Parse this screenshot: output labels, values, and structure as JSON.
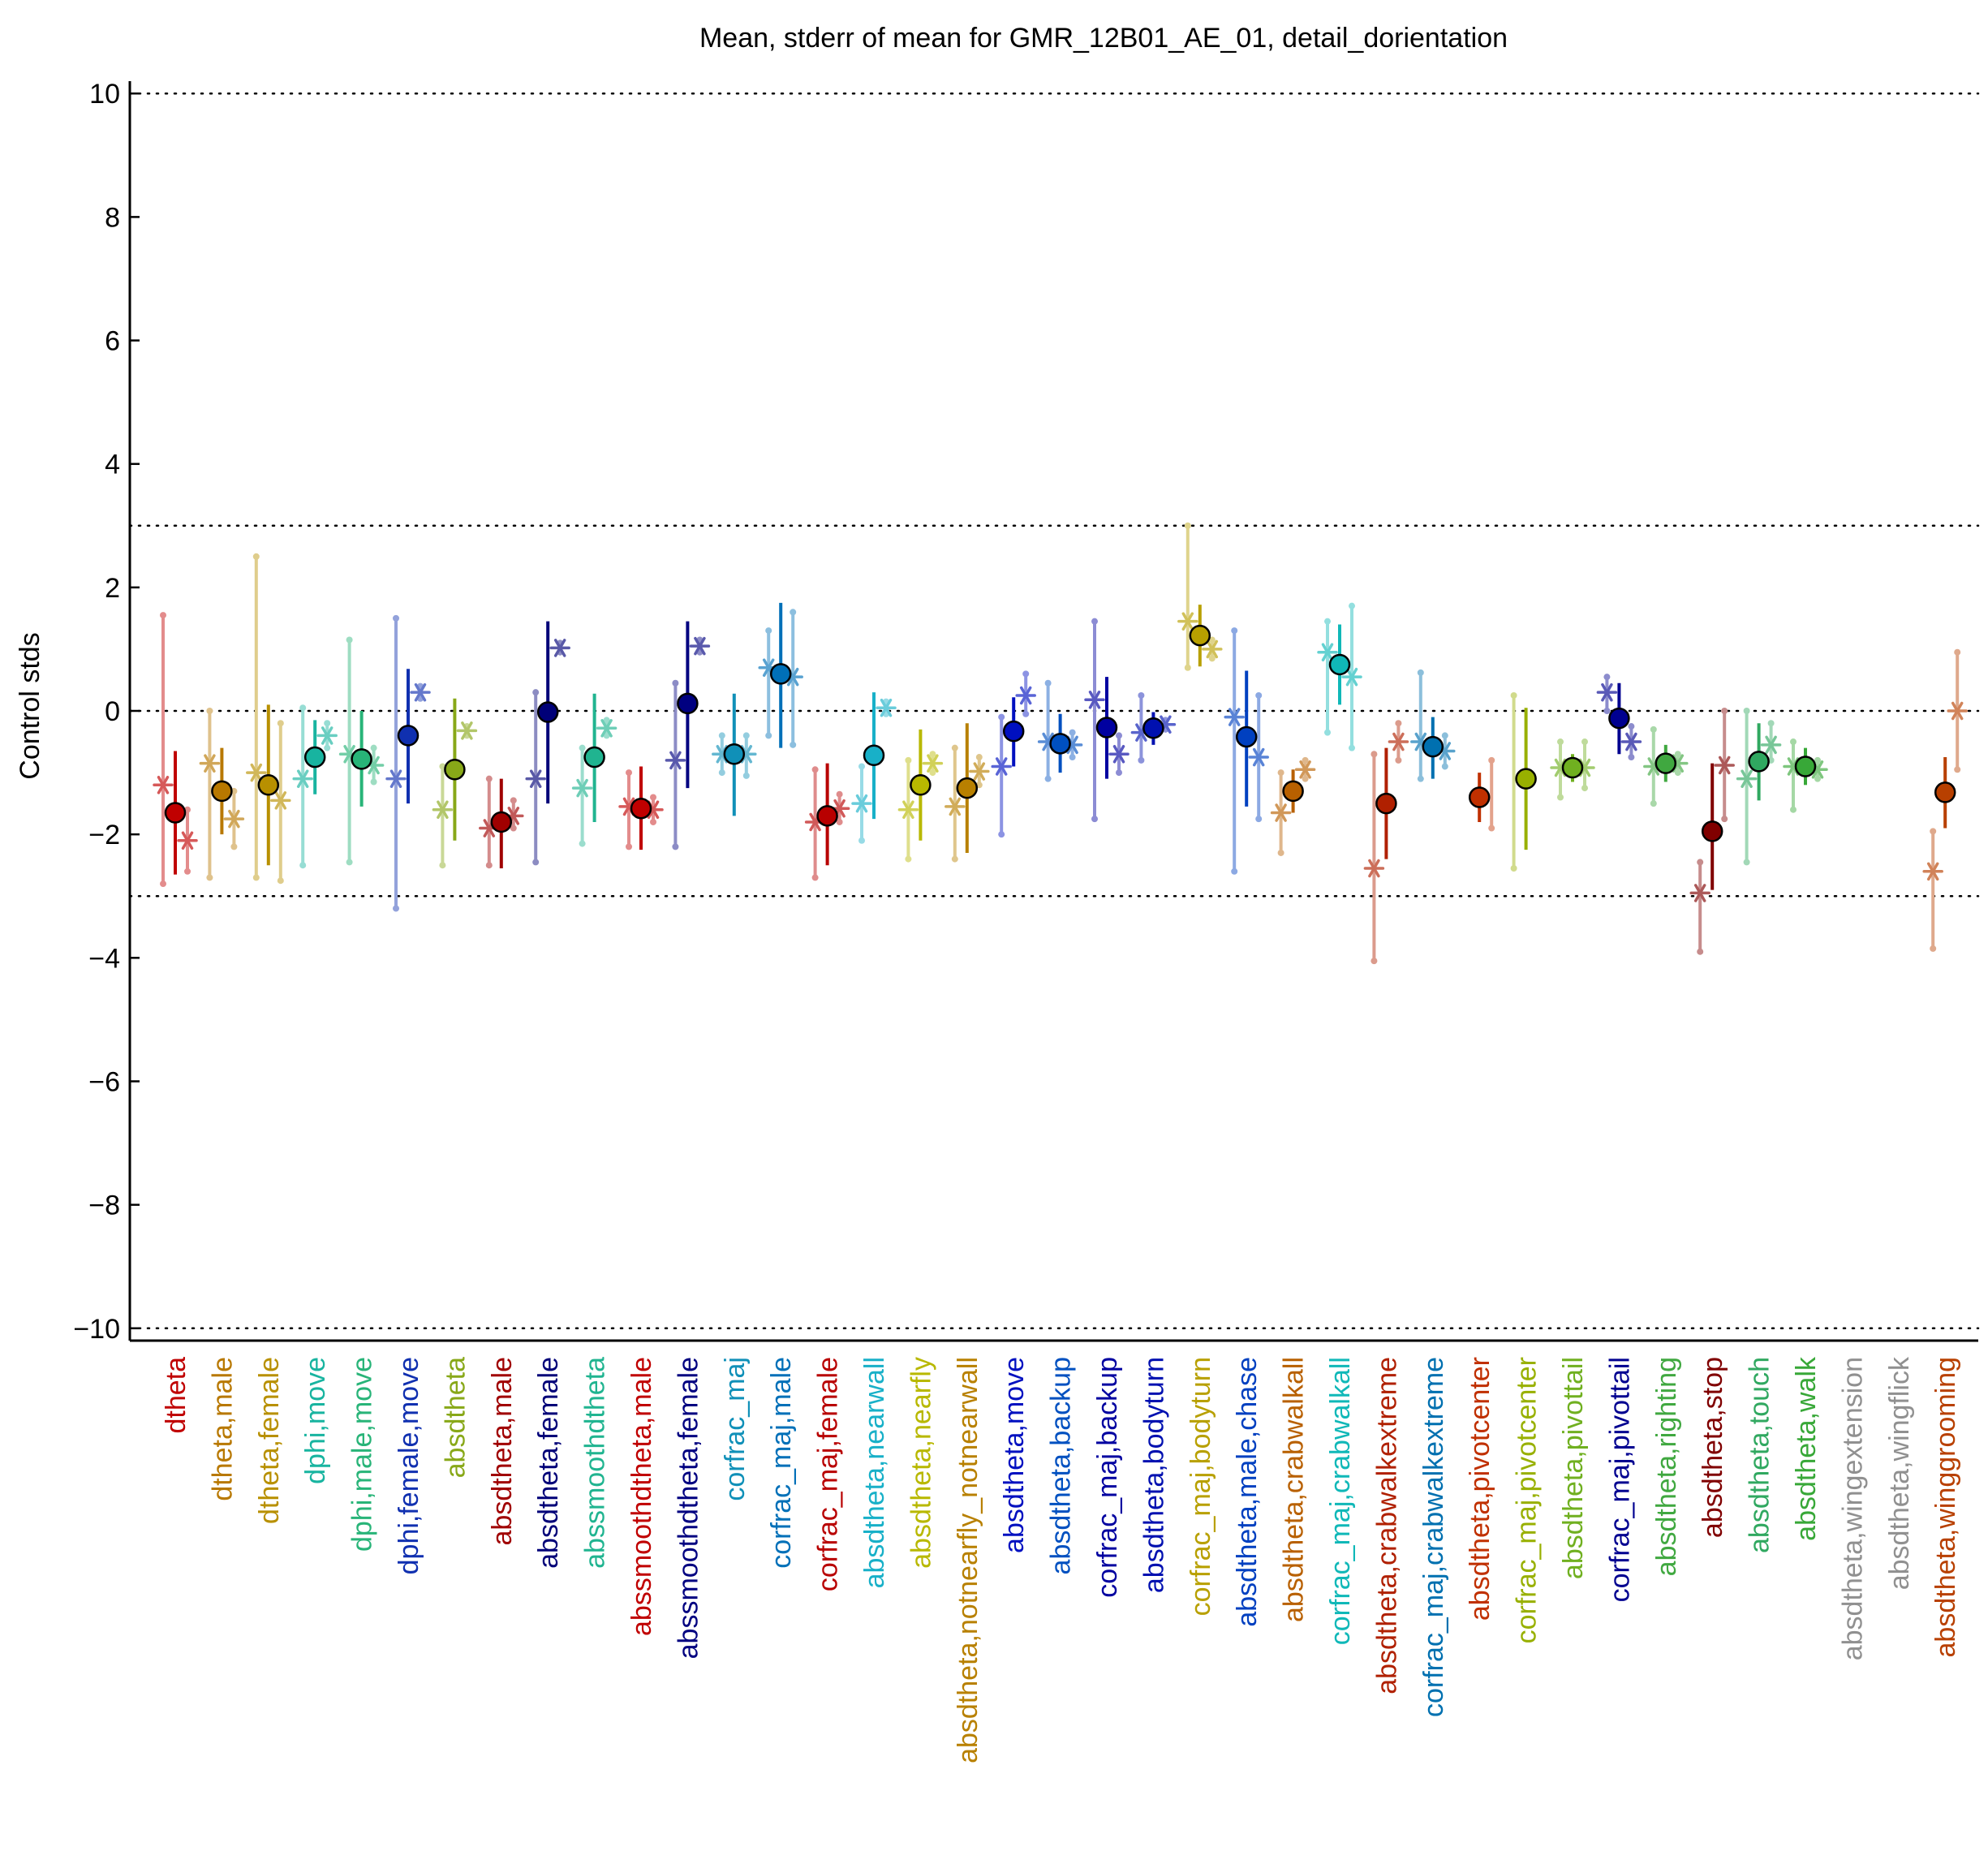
{
  "chart_data": {
    "type": "scatter",
    "title": "Mean, stderr of mean for GMR_12B01_AE_01, detail_dorientation",
    "ylabel": "Control stds",
    "xlabel": "",
    "ylim": [
      -10.2,
      10.2
    ],
    "yticks": [
      -10,
      -8,
      -6,
      -4,
      -2,
      0,
      2,
      4,
      6,
      8,
      10
    ],
    "ytick_labels": [
      "−10",
      "−8",
      "−6",
      "−4",
      "−2",
      "0",
      "2",
      "4",
      "6",
      "8",
      "10"
    ],
    "reference_lines": [
      10,
      3,
      0,
      -3,
      -10
    ],
    "grid": false,
    "legend": "none",
    "categories": [
      {
        "label": "dtheta",
        "color": "#c00000",
        "mean": -1.65,
        "lo": -2.65,
        "hi": -0.65,
        "m": -1.2,
        "m_lo": -2.8,
        "m_hi": 1.55,
        "f": -2.1,
        "f_lo": -2.6,
        "f_hi": -1.6
      },
      {
        "label": "dtheta,male",
        "color": "#b87800",
        "mean": -1.3,
        "lo": -2.0,
        "hi": -0.6,
        "m": -0.85,
        "m_lo": -2.7,
        "m_hi": 0.0,
        "f": -1.75,
        "f_lo": -2.2,
        "f_hi": -1.3
      },
      {
        "label": "dtheta,female",
        "color": "#b89000",
        "mean": -1.2,
        "lo": -2.5,
        "hi": 0.1,
        "m": -1.0,
        "m_lo": -2.7,
        "m_hi": 2.5,
        "f": -1.45,
        "f_lo": -2.75,
        "f_hi": -0.2
      },
      {
        "label": "dphi,move",
        "color": "#18b4a0",
        "mean": -0.75,
        "lo": -1.35,
        "hi": -0.15,
        "m": -1.1,
        "m_lo": -2.5,
        "m_hi": 0.05,
        "f": -0.4,
        "f_lo": -0.6,
        "f_hi": -0.2
      },
      {
        "label": "dphi,male,move",
        "color": "#28b478",
        "mean": -0.78,
        "lo": -1.55,
        "hi": 0.0,
        "m": -0.7,
        "m_lo": -2.45,
        "m_hi": 1.15,
        "f": -0.88,
        "f_lo": -1.15,
        "f_hi": -0.6
      },
      {
        "label": "dphi,female,move",
        "color": "#1030b0",
        "mean": -0.4,
        "lo": -1.5,
        "hi": 0.68,
        "m": -1.1,
        "m_lo": -3.2,
        "m_hi": 1.5,
        "f": 0.3,
        "f_lo": 0.2,
        "f_hi": 0.4
      },
      {
        "label": "absdtheta",
        "color": "#88a818",
        "mean": -0.95,
        "lo": -2.1,
        "hi": 0.2,
        "m": -1.6,
        "m_lo": -2.5,
        "m_hi": -0.9,
        "f": -0.32,
        "f_lo": -0.4,
        "f_hi": -0.25
      },
      {
        "label": "absdtheta,male",
        "color": "#a00000",
        "mean": -1.8,
        "lo": -2.55,
        "hi": -1.1,
        "m": -1.9,
        "m_lo": -2.5,
        "m_hi": -1.1,
        "f": -1.7,
        "f_lo": -1.9,
        "f_hi": -1.45
      },
      {
        "label": "absdtheta,female",
        "color": "#000078",
        "mean": -0.02,
        "lo": -1.5,
        "hi": 1.45,
        "m": -1.1,
        "m_lo": -2.45,
        "m_hi": 0.3,
        "f": 1.02,
        "f_lo": 0.95,
        "f_hi": 1.1
      },
      {
        "label": "abssmoothdtheta",
        "color": "#20b490",
        "mean": -0.75,
        "lo": -1.8,
        "hi": 0.28,
        "m": -1.25,
        "m_lo": -2.15,
        "m_hi": -0.6,
        "f": -0.28,
        "f_lo": -0.4,
        "f_hi": -0.15
      },
      {
        "label": "abssmoothdtheta,male",
        "color": "#c00000",
        "mean": -1.58,
        "lo": -2.25,
        "hi": -0.9,
        "m": -1.55,
        "m_lo": -2.2,
        "m_hi": -1.0,
        "f": -1.6,
        "f_lo": -1.8,
        "f_hi": -1.4
      },
      {
        "label": "abssmoothdtheta,female",
        "color": "#000080",
        "mean": 0.12,
        "lo": -1.25,
        "hi": 1.45,
        "m": -0.8,
        "m_lo": -2.2,
        "m_hi": 0.45,
        "f": 1.05,
        "f_lo": 0.95,
        "f_hi": 1.15
      },
      {
        "label": "corfrac_maj",
        "color": "#1090b8",
        "mean": -0.7,
        "lo": -1.7,
        "hi": 0.28,
        "m": -0.7,
        "m_lo": -1.0,
        "m_hi": -0.4,
        "f": -0.7,
        "f_lo": -1.05,
        "f_hi": -0.4
      },
      {
        "label": "corfrac_maj,male",
        "color": "#0070b8",
        "mean": 0.6,
        "lo": -0.6,
        "hi": 1.75,
        "m": 0.7,
        "m_lo": -0.4,
        "m_hi": 1.3,
        "f": 0.55,
        "f_lo": -0.55,
        "f_hi": 1.6
      },
      {
        "label": "corfrac_maj,female",
        "color": "#b80000",
        "mean": -1.7,
        "lo": -2.5,
        "hi": -0.85,
        "m": -1.8,
        "m_lo": -2.7,
        "m_hi": -0.95,
        "f": -1.58,
        "f_lo": -1.8,
        "f_hi": -1.35
      },
      {
        "label": "absdtheta,nearwall",
        "color": "#18b0c8",
        "mean": -0.72,
        "lo": -1.75,
        "hi": 0.3,
        "m": -1.5,
        "m_lo": -2.1,
        "m_hi": -0.9,
        "f": 0.05,
        "f_lo": -0.05,
        "f_hi": 0.15
      },
      {
        "label": "absdtheta,nearfly",
        "color": "#b8b800",
        "mean": -1.2,
        "lo": -2.1,
        "hi": -0.3,
        "m": -1.6,
        "m_lo": -2.4,
        "m_hi": -0.8,
        "f": -0.85,
        "f_lo": -1.0,
        "f_hi": -0.7
      },
      {
        "label": "absdtheta,notnearfly_notnearwall",
        "color": "#b88000",
        "mean": -1.25,
        "lo": -2.3,
        "hi": -0.2,
        "m": -1.55,
        "m_lo": -2.4,
        "m_hi": -0.6,
        "f": -0.98,
        "f_lo": -1.2,
        "f_hi": -0.75
      },
      {
        "label": "absdtheta,move",
        "color": "#0010c0",
        "mean": -0.33,
        "lo": -0.9,
        "hi": 0.22,
        "m": -0.9,
        "m_lo": -2.0,
        "m_hi": -0.1,
        "f": 0.25,
        "f_lo": -0.05,
        "f_hi": 0.6
      },
      {
        "label": "absdtheta,backup",
        "color": "#0050c0",
        "mean": -0.53,
        "lo": -1.0,
        "hi": -0.05,
        "m": -0.5,
        "m_lo": -1.1,
        "m_hi": 0.45,
        "f": -0.55,
        "f_lo": -0.75,
        "f_hi": -0.35
      },
      {
        "label": "corfrac_maj,backup",
        "color": "#0000a0",
        "mean": -0.27,
        "lo": -1.1,
        "hi": 0.55,
        "m": 0.18,
        "m_lo": -1.75,
        "m_hi": 1.45,
        "f": -0.7,
        "f_lo": -1.0,
        "f_hi": -0.4
      },
      {
        "label": "absdtheta,bodyturn",
        "color": "#0010b0",
        "mean": -0.28,
        "lo": -0.55,
        "hi": -0.02,
        "m": -0.35,
        "m_lo": -0.8,
        "m_hi": 0.25,
        "f": -0.22,
        "f_lo": -0.3,
        "f_hi": -0.15
      },
      {
        "label": "corfrac_maj,bodyturn",
        "color": "#b8a000",
        "mean": 1.22,
        "lo": 0.72,
        "hi": 1.72,
        "m": 1.45,
        "m_lo": 0.7,
        "m_hi": 3.0,
        "f": 1.0,
        "f_lo": 0.85,
        "f_hi": 1.15
      },
      {
        "label": "absdtheta,male,chase",
        "color": "#0040c0",
        "mean": -0.42,
        "lo": -1.55,
        "hi": 0.65,
        "m": -0.1,
        "m_lo": -2.6,
        "m_hi": 1.3,
        "f": -0.75,
        "f_lo": -1.75,
        "f_hi": 0.25
      },
      {
        "label": "absdtheta,crabwalkall",
        "color": "#b86000",
        "mean": -1.3,
        "lo": -1.65,
        "hi": -0.95,
        "m": -1.65,
        "m_lo": -2.3,
        "m_hi": -1.0,
        "f": -0.95,
        "f_lo": -1.1,
        "f_hi": -0.8
      },
      {
        "label": "corfrac_maj,crabwalkall",
        "color": "#10b8b8",
        "mean": 0.75,
        "lo": 0.1,
        "hi": 1.4,
        "m": 0.95,
        "m_lo": -0.35,
        "m_hi": 1.45,
        "f": 0.55,
        "f_lo": -0.6,
        "f_hi": 1.7
      },
      {
        "label": "absdtheta,crabwalkextreme",
        "color": "#b02000",
        "mean": -1.5,
        "lo": -2.4,
        "hi": -0.6,
        "m": -2.55,
        "m_lo": -4.05,
        "m_hi": -0.7,
        "f": -0.5,
        "f_lo": -0.8,
        "f_hi": -0.2
      },
      {
        "label": "corfrac_maj,crabwalkextreme",
        "color": "#0070b0",
        "mean": -0.58,
        "lo": -1.1,
        "hi": -0.1,
        "m": -0.5,
        "m_lo": -1.1,
        "m_hi": 0.62,
        "f": -0.65,
        "f_lo": -0.9,
        "f_hi": -0.4
      },
      {
        "label": "absdtheta,pivotcenter",
        "color": "#c03000",
        "mean": -1.4,
        "lo": -1.8,
        "hi": -1.0,
        "m": null,
        "m_lo": null,
        "m_hi": null,
        "f": null,
        "f_lo": -1.9,
        "f_hi": -0.8
      },
      {
        "label": "corfrac_maj,pivotcenter",
        "color": "#98b000",
        "mean": -1.1,
        "lo": -2.25,
        "hi": 0.05,
        "m": null,
        "m_lo": -2.55,
        "m_hi": 0.25,
        "f": null,
        "f_lo": null,
        "f_hi": null
      },
      {
        "label": "absdtheta,pivottail",
        "color": "#70b020",
        "mean": -0.92,
        "lo": -1.15,
        "hi": -0.7,
        "m": -0.92,
        "m_lo": -1.4,
        "m_hi": -0.5,
        "f": -0.92,
        "f_lo": -1.25,
        "f_hi": -0.5
      },
      {
        "label": "corfrac_maj,pivottail",
        "color": "#000090",
        "mean": -0.12,
        "lo": -0.7,
        "hi": 0.45,
        "m": 0.3,
        "m_lo": 0.0,
        "m_hi": 0.55,
        "f": -0.5,
        "f_lo": -0.75,
        "f_hi": -0.25
      },
      {
        "label": "absdtheta,righting",
        "color": "#40a840",
        "mean": -0.85,
        "lo": -1.15,
        "hi": -0.55,
        "m": -0.9,
        "m_lo": -1.5,
        "m_hi": -0.3,
        "f": -0.85,
        "f_lo": -1.0,
        "f_hi": -0.7
      },
      {
        "label": "absdtheta,stop",
        "color": "#800000",
        "mean": -1.95,
        "lo": -2.9,
        "hi": -0.85,
        "m": -2.95,
        "m_lo": -3.9,
        "m_hi": -2.45,
        "f": -0.88,
        "f_lo": -1.75,
        "f_hi": 0.0
      },
      {
        "label": "absdtheta,touch",
        "color": "#30a860",
        "mean": -0.82,
        "lo": -1.45,
        "hi": -0.2,
        "m": -1.1,
        "m_lo": -2.45,
        "m_hi": 0.0,
        "f": -0.55,
        "f_lo": -0.8,
        "f_hi": -0.2
      },
      {
        "label": "absdtheta,walk",
        "color": "#38a838",
        "mean": -0.9,
        "lo": -1.2,
        "hi": -0.6,
        "m": -0.9,
        "m_lo": -1.6,
        "m_hi": -0.5,
        "f": -0.95,
        "f_lo": -1.1,
        "f_hi": -0.8
      },
      {
        "label": "absdtheta,wingextension",
        "color": "#909090",
        "mean": null,
        "lo": null,
        "hi": null,
        "m": null,
        "m_lo": null,
        "m_hi": null,
        "f": null,
        "f_lo": null,
        "f_hi": null
      },
      {
        "label": "absdtheta,wingflick",
        "color": "#909090",
        "mean": null,
        "lo": null,
        "hi": null,
        "m": null,
        "m_lo": null,
        "m_hi": null,
        "f": null,
        "f_lo": null,
        "f_hi": null
      },
      {
        "label": "absdtheta,winggrooming",
        "color": "#b84000",
        "mean": -1.32,
        "lo": -1.9,
        "hi": -0.75,
        "m": -2.6,
        "m_lo": -3.85,
        "m_hi": -1.95,
        "f": 0.0,
        "f_lo": -0.95,
        "f_hi": 0.95
      }
    ]
  }
}
